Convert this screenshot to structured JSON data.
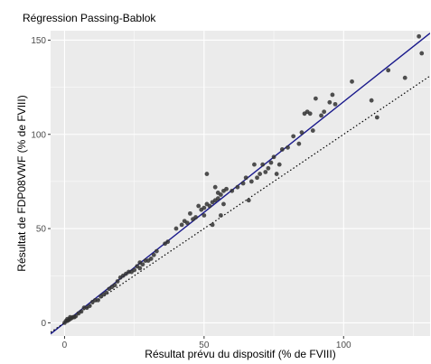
{
  "chart_data": {
    "type": "scatter",
    "title": "Régression Passing-Bablok",
    "xlabel": "Résultat prévu du dispositif (% de FVIII)",
    "ylabel": "Résultat de FDP08VWF (% de FVIII)",
    "xlim": [
      -5,
      131
    ],
    "ylim": [
      -7,
      155
    ],
    "xticks": [
      0,
      50,
      100
    ],
    "yticks": [
      0,
      50,
      100,
      150
    ],
    "grid": true,
    "colors": {
      "panel_background": "#ebebeb",
      "grid_major": "#ffffff",
      "points": "#333333",
      "regression_line": "#1a1a8c",
      "identity_line": "#000000"
    },
    "lines": [
      {
        "type": "regression",
        "style": "solid",
        "color": "#1a1a8c",
        "x": [
          -5,
          131
        ],
        "y": [
          -5.9,
          153.7
        ]
      },
      {
        "type": "identity",
        "style": "dotted",
        "color": "#000000",
        "x": [
          -5,
          131
        ],
        "y": [
          -5,
          131
        ]
      }
    ],
    "points": [
      [
        0,
        0
      ],
      [
        0.5,
        1
      ],
      [
        1,
        1
      ],
      [
        1,
        2
      ],
      [
        1.5,
        1.5
      ],
      [
        2,
        2
      ],
      [
        2,
        3
      ],
      [
        2.5,
        2.5
      ],
      [
        3,
        3
      ],
      [
        3.5,
        3
      ],
      [
        4,
        3.5
      ],
      [
        5,
        5
      ],
      [
        6,
        6
      ],
      [
        7,
        8
      ],
      [
        8,
        8
      ],
      [
        9,
        9
      ],
      [
        10,
        11
      ],
      [
        11,
        12
      ],
      [
        12,
        12
      ],
      [
        13,
        14
      ],
      [
        14,
        15
      ],
      [
        15,
        16
      ],
      [
        16,
        18
      ],
      [
        17,
        19
      ],
      [
        18,
        20
      ],
      [
        19,
        22
      ],
      [
        20,
        24
      ],
      [
        21,
        25
      ],
      [
        22,
        26
      ],
      [
        23,
        27
      ],
      [
        24,
        27
      ],
      [
        25,
        28
      ],
      [
        26,
        30
      ],
      [
        27,
        29
      ],
      [
        27,
        32
      ],
      [
        28,
        31
      ],
      [
        29,
        33
      ],
      [
        30,
        33
      ],
      [
        31,
        34
      ],
      [
        32,
        36
      ],
      [
        33,
        38
      ],
      [
        36,
        42
      ],
      [
        37,
        43
      ],
      [
        40,
        50
      ],
      [
        42,
        52
      ],
      [
        43,
        54
      ],
      [
        44,
        53
      ],
      [
        45,
        58
      ],
      [
        46,
        55
      ],
      [
        47,
        56
      ],
      [
        48,
        62
      ],
      [
        49,
        60
      ],
      [
        50,
        57
      ],
      [
        50,
        61
      ],
      [
        51,
        63
      ],
      [
        51,
        79
      ],
      [
        52,
        62
      ],
      [
        53,
        64
      ],
      [
        53,
        52
      ],
      [
        54,
        65
      ],
      [
        54,
        72
      ],
      [
        55,
        66
      ],
      [
        55,
        69
      ],
      [
        56,
        68
      ],
      [
        56,
        57
      ],
      [
        57,
        63
      ],
      [
        57,
        70
      ],
      [
        58,
        71
      ],
      [
        60,
        70
      ],
      [
        62,
        72
      ],
      [
        64,
        74
      ],
      [
        65,
        77
      ],
      [
        66,
        65
      ],
      [
        67,
        75
      ],
      [
        68,
        84
      ],
      [
        69,
        77
      ],
      [
        70,
        79
      ],
      [
        71,
        84
      ],
      [
        72,
        80
      ],
      [
        73,
        82
      ],
      [
        74,
        85
      ],
      [
        75,
        88
      ],
      [
        76,
        79
      ],
      [
        77,
        84
      ],
      [
        78,
        92
      ],
      [
        80,
        93
      ],
      [
        82,
        99
      ],
      [
        84,
        95
      ],
      [
        85,
        101
      ],
      [
        86,
        111
      ],
      [
        87,
        112
      ],
      [
        88,
        111
      ],
      [
        89,
        102
      ],
      [
        90,
        119
      ],
      [
        92,
        110
      ],
      [
        93,
        112
      ],
      [
        95,
        117
      ],
      [
        96,
        121
      ],
      [
        97,
        116
      ],
      [
        103,
        128
      ],
      [
        110,
        118
      ],
      [
        112,
        109
      ],
      [
        116,
        134
      ],
      [
        122,
        130
      ],
      [
        127,
        152
      ],
      [
        128,
        143
      ]
    ]
  }
}
